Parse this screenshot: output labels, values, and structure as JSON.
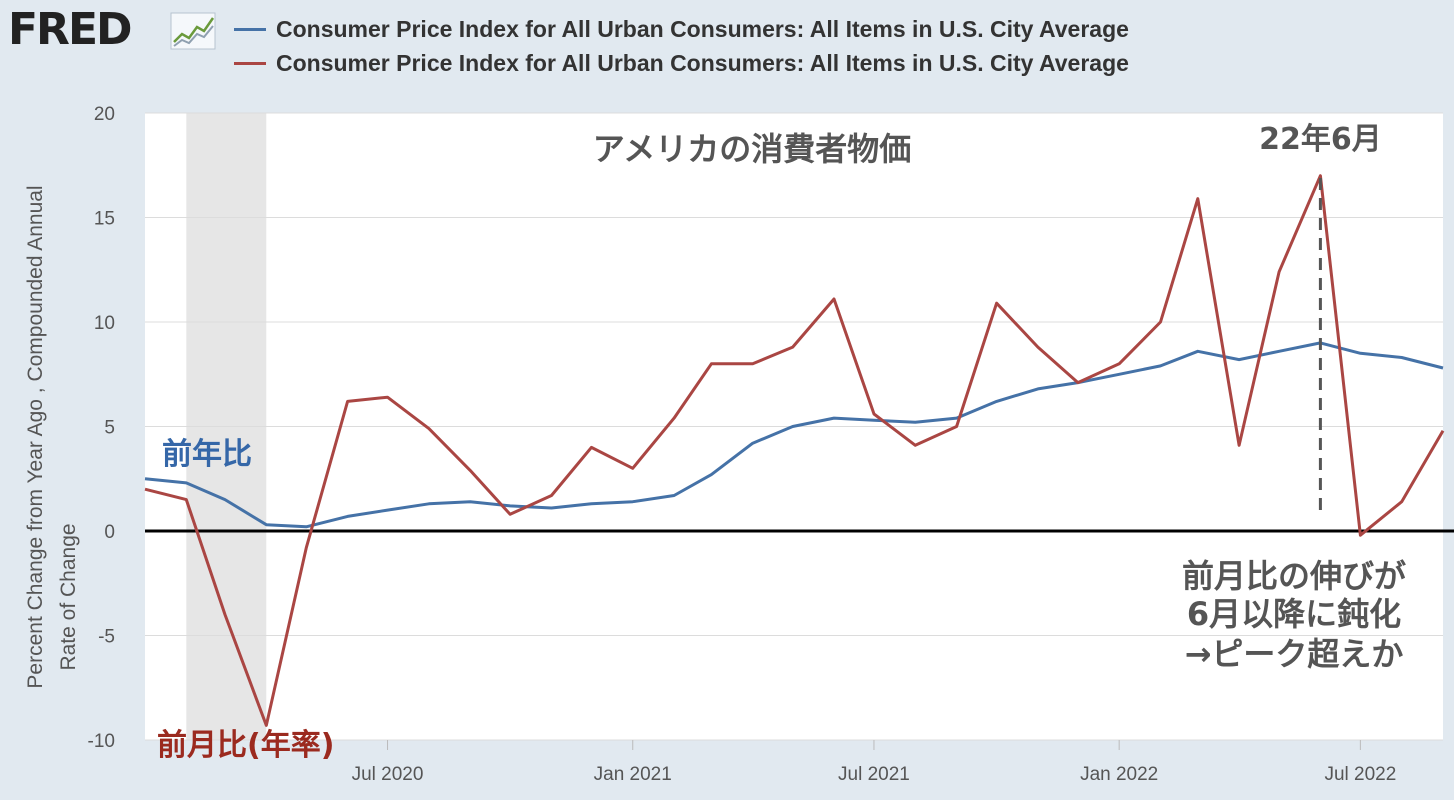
{
  "header": {
    "logo_text": "FRED",
    "logo_icon": "trend-chart-icon"
  },
  "legend": [
    {
      "name": "Consumer Price Index for All Urban Consumers: All Items in U.S. City Average",
      "color": "#4572a7"
    },
    {
      "name": "Consumer Price Index for All Urban Consumers: All Items in U.S. City Average",
      "color": "#aa4643"
    }
  ],
  "colors": {
    "series_yoy": "#4572a7",
    "series_mom": "#aa4643",
    "recession": "#e6e6e6",
    "plot_bg": "#ffffff",
    "page_bg": "#e1e9f0",
    "annotation_blue": "#3567a8",
    "annotation_red": "#9b2a1f"
  },
  "chart_data": {
    "type": "line",
    "title": "アメリカの消費者物価",
    "ylabel_lines": [
      "Percent Change from Year Ago , Compounded Annual",
      "Rate of Change"
    ],
    "ylim": [
      -10,
      20
    ],
    "yticks": [
      -10,
      -5,
      0,
      5,
      10,
      15,
      20
    ],
    "xlim": [
      "2020-01-01",
      "2022-09-01"
    ],
    "xticks": [
      {
        "date": "2020-07-01",
        "label": "Jul 2020"
      },
      {
        "date": "2021-01-01",
        "label": "Jan 2021"
      },
      {
        "date": "2021-07-01",
        "label": "Jul 2021"
      },
      {
        "date": "2022-01-01",
        "label": "Jan 2022"
      },
      {
        "date": "2022-07-01",
        "label": "Jul 2022"
      }
    ],
    "recession": {
      "start": "2020-02-01",
      "end": "2020-04-01"
    },
    "grid": true,
    "x": [
      "2020-01-01",
      "2020-02-01",
      "2020-03-01",
      "2020-04-01",
      "2020-05-01",
      "2020-06-01",
      "2020-07-01",
      "2020-08-01",
      "2020-09-01",
      "2020-10-01",
      "2020-11-01",
      "2020-12-01",
      "2021-01-01",
      "2021-02-01",
      "2021-03-01",
      "2021-04-01",
      "2021-05-01",
      "2021-06-01",
      "2021-07-01",
      "2021-08-01",
      "2021-09-01",
      "2021-10-01",
      "2021-11-01",
      "2021-12-01",
      "2022-01-01",
      "2022-02-01",
      "2022-03-01",
      "2022-04-01",
      "2022-05-01",
      "2022-06-01",
      "2022-07-01",
      "2022-08-01",
      "2022-09-01"
    ],
    "series": [
      {
        "name": "Consumer Price Index for All Urban Consumers: All Items in U.S. City Average",
        "values": [
          2.5,
          2.3,
          1.5,
          0.3,
          0.2,
          0.7,
          1.0,
          1.3,
          1.4,
          1.2,
          1.1,
          1.3,
          1.4,
          1.7,
          2.7,
          4.2,
          5.0,
          5.4,
          5.3,
          5.2,
          5.4,
          6.2,
          6.8,
          7.1,
          7.5,
          7.9,
          8.6,
          8.2,
          8.6,
          9.0,
          8.5,
          8.3,
          7.8
        ]
      },
      {
        "name": "Consumer Price Index for All Urban Consumers: All Items in U.S. City Average",
        "values": [
          2.0,
          1.5,
          -4.0,
          -9.3,
          -0.8,
          6.2,
          6.4,
          4.9,
          2.9,
          0.8,
          1.7,
          4.0,
          3.0,
          5.4,
          8.0,
          8.0,
          8.8,
          11.1,
          5.6,
          4.1,
          5.0,
          10.9,
          8.8,
          7.1,
          8.0,
          10.0,
          15.9,
          4.1,
          12.4,
          17.0,
          -0.2,
          1.4,
          4.8
        ]
      }
    ],
    "annotations": {
      "yoy_label": "前年比",
      "mom_label": "前月比(年率)",
      "peak_label": "22年6月",
      "peak_date": "2022-06-01",
      "comment_lines": [
        "前月比の伸びが",
        "6月以降に鈍化",
        "→ピーク超えか"
      ]
    }
  }
}
